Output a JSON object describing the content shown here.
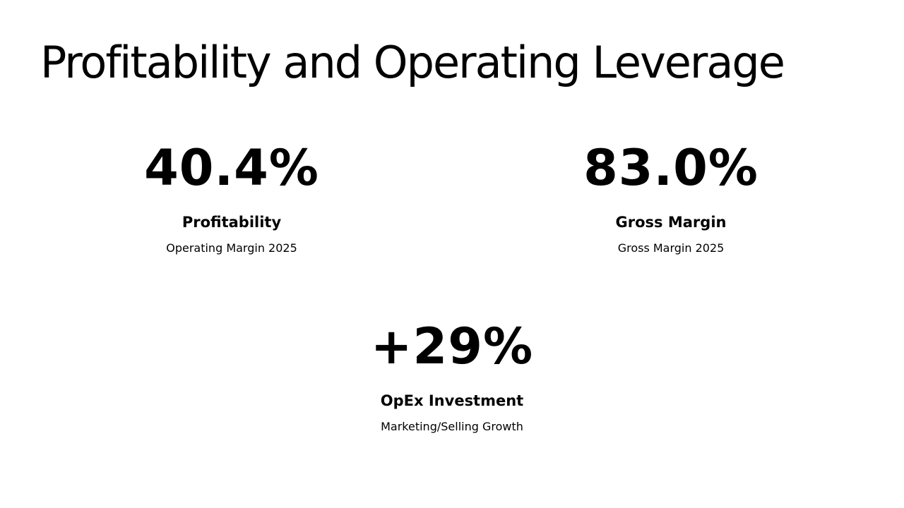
{
  "title": "Profitability and Operating Leverage",
  "stats": [
    {
      "value": "40.4%",
      "label": "Profitability",
      "desc": "Operating Margin 2025"
    },
    {
      "value": "83.0%",
      "label": "Gross Margin",
      "desc": "Gross Margin 2025"
    },
    {
      "value": "+29%",
      "label": "OpEx Investment",
      "desc": "Marketing/Selling Growth"
    }
  ]
}
